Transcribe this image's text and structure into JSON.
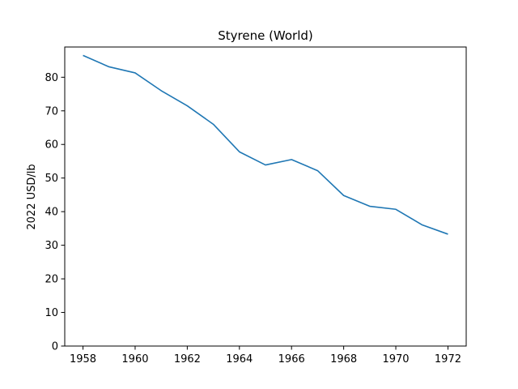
{
  "chart_data": {
    "type": "line",
    "title": "Styrene (World)",
    "xlabel": "",
    "ylabel": "2022 USD/lb",
    "xlim": [
      1957.3,
      1972.7
    ],
    "ylim": [
      0,
      89
    ],
    "x_ticks": [
      1958,
      1960,
      1962,
      1964,
      1966,
      1968,
      1970,
      1972
    ],
    "y_ticks": [
      0,
      10,
      20,
      30,
      40,
      50,
      60,
      70,
      80
    ],
    "grid": false,
    "colors": {
      "line": "#1f77b4"
    },
    "series": [
      {
        "x": [
          1958,
          1959,
          1960,
          1961,
          1962,
          1963,
          1964,
          1965,
          1966,
          1967,
          1968,
          1969,
          1970,
          1971,
          1972
        ],
        "values": [
          86.5,
          83.1,
          81.3,
          76.0,
          71.5,
          66.0,
          57.8,
          53.9,
          55.5,
          52.2,
          44.8,
          41.6,
          40.7,
          36.1,
          33.3
        ]
      }
    ]
  }
}
